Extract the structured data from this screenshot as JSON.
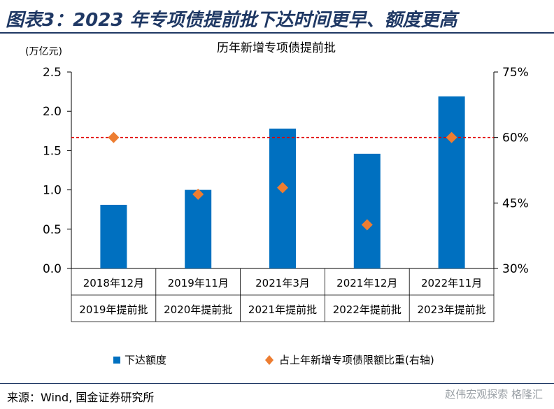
{
  "figure": {
    "title": "图表3：2023 年专项债提前批下达时间更早、额度更高",
    "source": "来源：Wind, 国金证券研究所",
    "watermark": "赵伟宏观探索 格隆汇"
  },
  "chart_data": {
    "type": "bar",
    "title": "历年新增专项债提前批",
    "left_unit": "(万亿元)",
    "categories": [
      "2018年12月",
      "2019年11月",
      "2021年3月",
      "2021年12月",
      "2022年11月"
    ],
    "category_sublabels": [
      "2019年提前批",
      "2020年提前批",
      "2021年提前批",
      "2022年提前批",
      "2023年提前批"
    ],
    "series": [
      {
        "name": "下达额度",
        "axis": "left",
        "kind": "bar",
        "color": "#0070c0",
        "values": [
          0.81,
          1.0,
          1.78,
          1.46,
          2.19
        ]
      },
      {
        "name": "占上年新增专项债限额比重(右轴)",
        "axis": "right",
        "kind": "scatter",
        "marker": "diamond",
        "color": "#ed7d31",
        "values": [
          60,
          47,
          48.5,
          40,
          60
        ]
      }
    ],
    "ylim_left": [
      0,
      2.5
    ],
    "yticks_left": [
      "0.0",
      "0.5",
      "1.0",
      "1.5",
      "2.0",
      "2.5"
    ],
    "ylim_right": [
      30,
      75
    ],
    "yticks_right": [
      "30%",
      "45%",
      "60%",
      "75%"
    ],
    "reference_line": {
      "axis": "right",
      "value": 60,
      "color": "#e00000",
      "style": "dashed"
    },
    "legend_position": "bottom",
    "grid": false
  }
}
